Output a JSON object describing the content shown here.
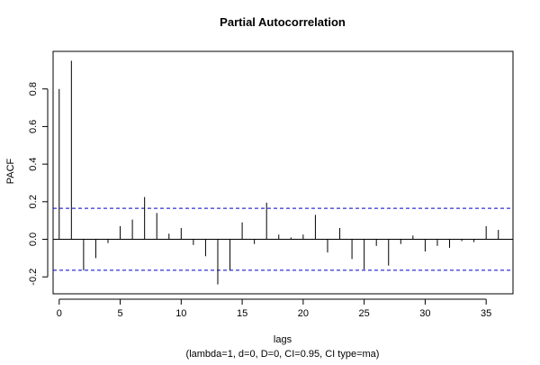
{
  "chart_data": {
    "type": "bar",
    "title": "Partial Autocorrelation",
    "xlabel": "lags",
    "subtitle": "(lambda=1, d=0, D=0, CI=0.95, CI type=ma)",
    "ylabel": "PACF",
    "xlim": [
      -0.5,
      37.2
    ],
    "ylim": [
      -0.29,
      1.0
    ],
    "x_ticks": [
      0,
      5,
      10,
      15,
      20,
      25,
      30,
      35
    ],
    "y_ticks": [
      -0.2,
      0.0,
      0.2,
      0.4,
      0.6,
      0.8
    ],
    "y_tick_labels": [
      "-0.2",
      "0.0",
      "0.2",
      "0.4",
      "0.6",
      "0.8"
    ],
    "zero_line": 0,
    "confidence_limits": [
      0.165,
      -0.165
    ],
    "series": [
      {
        "lags": [
          0,
          1,
          2,
          3,
          4,
          5,
          6,
          7,
          8,
          9,
          10,
          11,
          12,
          13,
          14,
          15,
          16,
          17,
          18,
          19,
          20,
          21,
          22,
          23,
          24,
          25,
          26,
          27,
          28,
          29,
          30,
          31,
          32,
          33,
          34,
          35,
          36
        ],
        "values": [
          0.8,
          0.95,
          -0.165,
          -0.1,
          -0.02,
          0.07,
          0.105,
          0.225,
          0.14,
          0.03,
          0.06,
          -0.03,
          -0.09,
          -0.24,
          -0.165,
          0.09,
          -0.025,
          0.195,
          0.025,
          0.01,
          0.025,
          0.13,
          -0.07,
          0.06,
          -0.105,
          -0.16,
          -0.035,
          -0.14,
          -0.025,
          0.02,
          -0.065,
          -0.035,
          -0.045,
          -0.01,
          -0.015,
          0.07,
          0.05
        ]
      }
    ],
    "colors": {
      "spike": "#000000",
      "confidence": "#0000cc",
      "axis": "#000000"
    },
    "grid": false
  }
}
